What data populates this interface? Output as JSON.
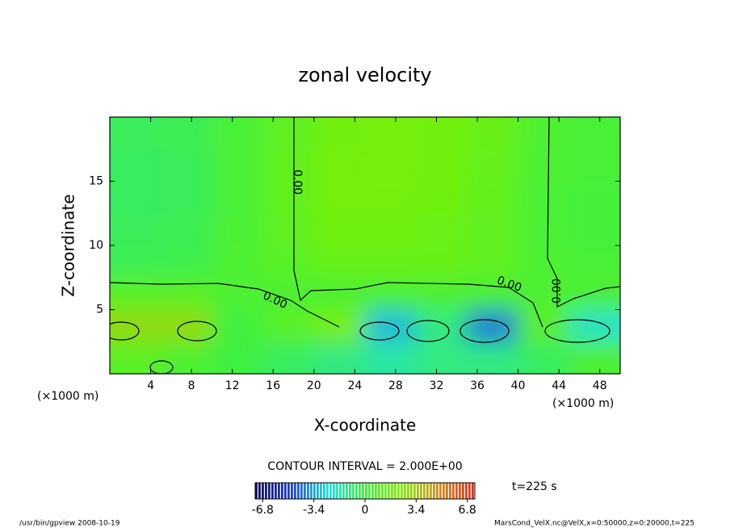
{
  "chart_data": {
    "type": "contour",
    "title": "zonal velocity",
    "x_label": "X-coordinate",
    "y_label": "Z-coordinate",
    "x_unit": "(×1000 m)",
    "xlim": [
      0,
      50
    ],
    "xticks": [
      4,
      8,
      12,
      16,
      20,
      24,
      28,
      32,
      36,
      40,
      44,
      48
    ],
    "ylim": [
      0,
      20
    ],
    "yticks": [
      5,
      10,
      15
    ],
    "x": [
      2.5,
      7.5,
      12.5,
      17.5,
      22.5,
      27.5,
      32.5,
      37.5,
      42.5,
      47.5
    ],
    "y": [
      1.25,
      3.75,
      6.25,
      8.75,
      11.25,
      13.75,
      16.25,
      18.75
    ],
    "values": [
      [
        1,
        0.5,
        0,
        -0.5,
        -1,
        -1.5,
        -1,
        -1,
        -0.5,
        0.5
      ],
      [
        3,
        3,
        0,
        1,
        2,
        -3,
        -1,
        -4,
        1,
        -2
      ],
      [
        1,
        1,
        0.5,
        0.5,
        0.5,
        0.5,
        0.5,
        0.5,
        0.5,
        0.5
      ],
      [
        -0.3,
        -0.2,
        0.5,
        1,
        1.5,
        1.5,
        1.5,
        1.2,
        0.5,
        0.3
      ],
      [
        -0.4,
        -0.3,
        0.4,
        1.2,
        1.8,
        1.8,
        1.6,
        1.2,
        0.4,
        0.2
      ],
      [
        -0.5,
        -0.4,
        0.3,
        1.3,
        2,
        2,
        1.8,
        1.3,
        0.4,
        0.2
      ],
      [
        -0.5,
        -0.4,
        0.3,
        1.3,
        2,
        2.1,
        1.9,
        1.4,
        0.5,
        0.3
      ],
      [
        -0.4,
        -0.3,
        0.3,
        1.2,
        1.9,
        2,
        1.9,
        1.5,
        0.6,
        0.3
      ]
    ],
    "colormap": [
      "#0a0a50",
      "#2040d0",
      "#20e0e0",
      "#40f040",
      "#80f000",
      "#d09020",
      "#e03020"
    ],
    "clim": [
      -7.3,
      7.3
    ],
    "colorbar_ticks": [
      -6.8,
      -3.4,
      0,
      3.4,
      6.8
    ],
    "contour_label": "0.00",
    "contour_interval": "CONTOUR INTERVAL = 2.000E+00",
    "time_label": "t=225 s",
    "footer_left": "/usr/bin/gpview   2008-10-19",
    "footer_right": "MarsCond_VelX.nc@VelX,x=0:50000,z=0:20000,t=225"
  }
}
